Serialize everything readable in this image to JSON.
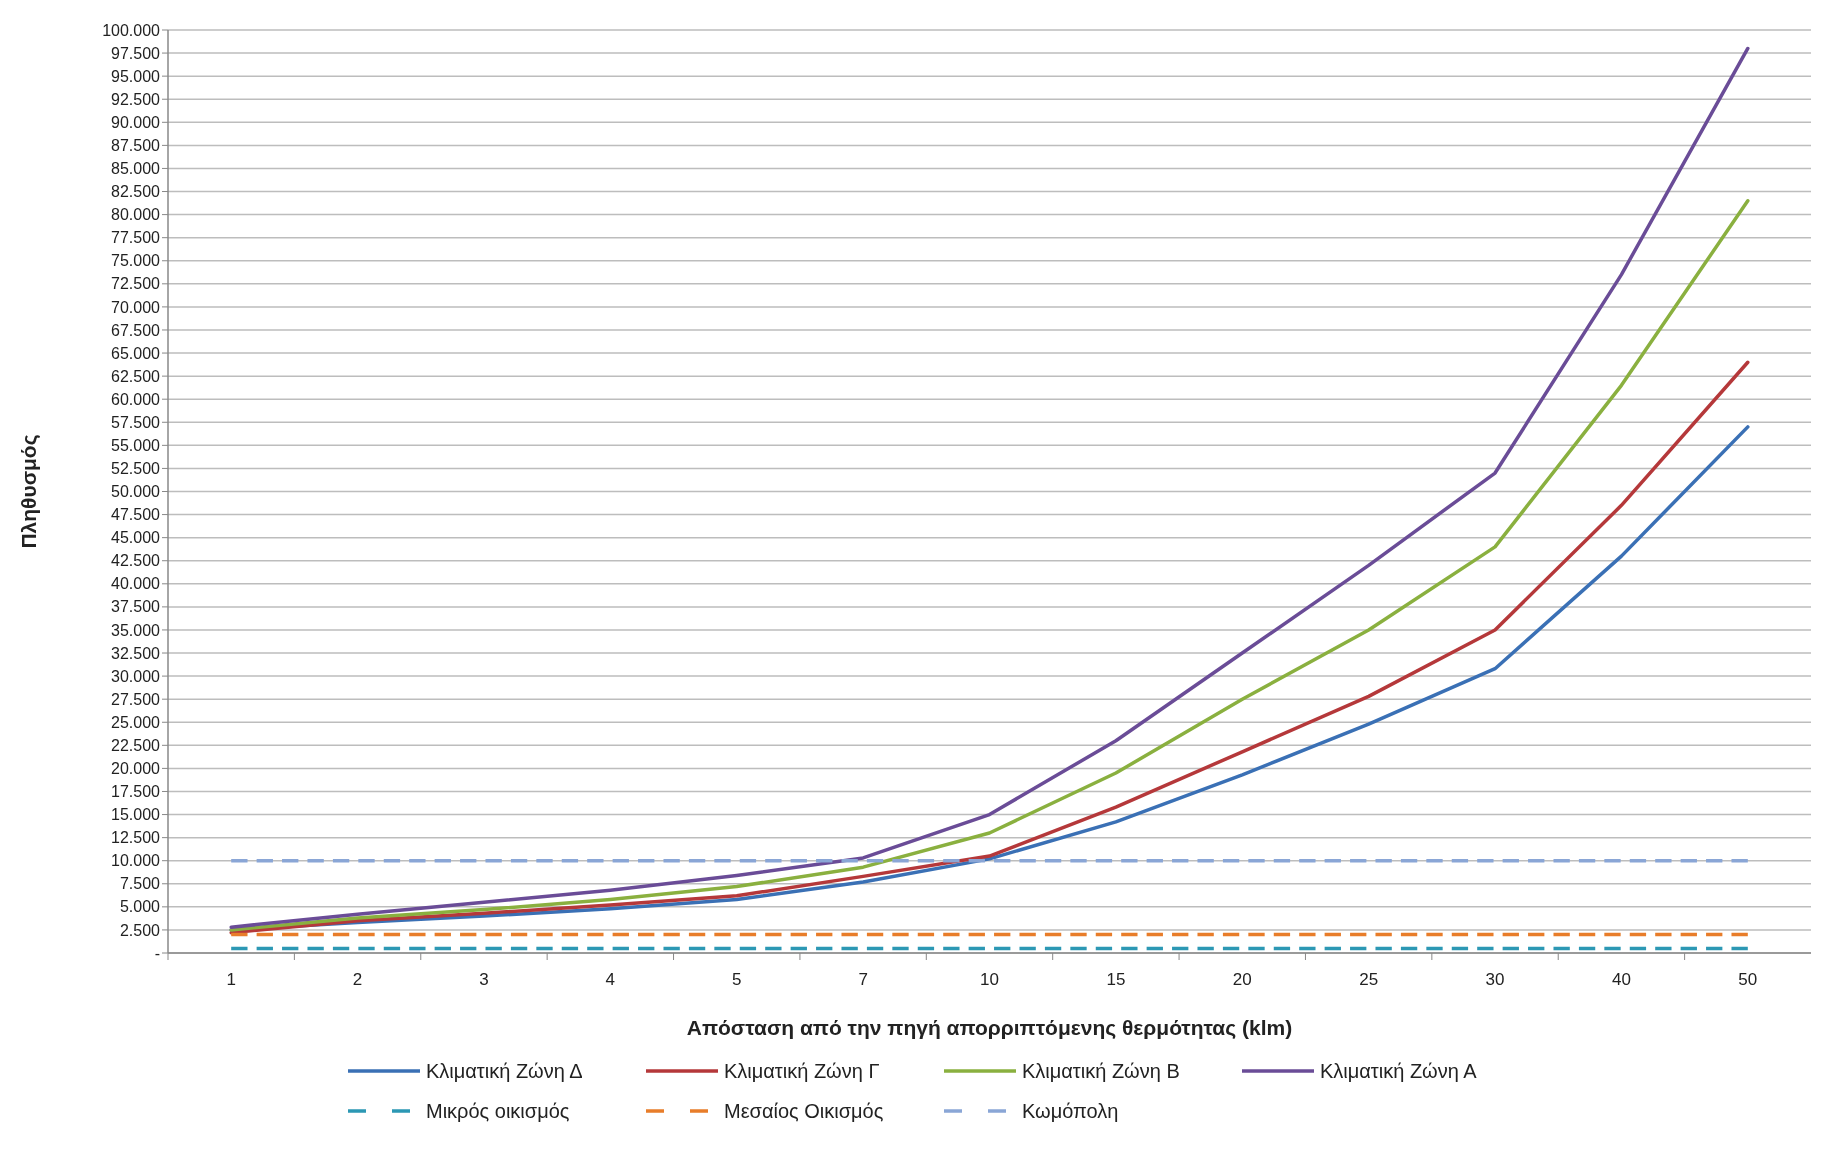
{
  "chart_data": {
    "type": "line",
    "xlabel": "Απόσταση από την πηγή απορριπτόμενης θερμότητας (klm)",
    "ylabel": "Πληθυσμός",
    "categories": [
      "1",
      "2",
      "3",
      "4",
      "5",
      "7",
      "10",
      "15",
      "20",
      "25",
      "30",
      "40",
      "50"
    ],
    "series": [
      {
        "name": "Κλιματική Ζώνη Δ",
        "color": "#3a70b5",
        "values": [
          2500,
          3300,
          4000,
          4800,
          5800,
          7700,
          10200,
          14200,
          19300,
          24800,
          30800,
          43000,
          57000
        ]
      },
      {
        "name": "Κλιματική Ζώνη Γ",
        "color": "#b5383a",
        "values": [
          2200,
          3500,
          4300,
          5200,
          6200,
          8300,
          10500,
          15800,
          21800,
          27800,
          35000,
          48500,
          64000
        ]
      },
      {
        "name": "Κλιματική Ζώνη Β",
        "color": "#8ab03f",
        "values": [
          2500,
          3800,
          4700,
          5800,
          7200,
          9300,
          13000,
          19500,
          27500,
          35000,
          44000,
          61500,
          81500
        ]
      },
      {
        "name": "Κλιματική Ζώνη Α",
        "color": "#6a4c97",
        "values": [
          2800,
          4200,
          5500,
          6800,
          8400,
          10300,
          15000,
          23000,
          32500,
          42000,
          52000,
          73500,
          98000
        ]
      },
      {
        "name": "Μικρός οικισμός",
        "color": "#2c98b4",
        "line_style": "dashed",
        "values": [
          500,
          500,
          500,
          500,
          500,
          500,
          500,
          500,
          500,
          500,
          500,
          500,
          500
        ]
      },
      {
        "name": "Μεσαίος Οικισμός",
        "color": "#e87d2a",
        "line_style": "dashed",
        "values": [
          2000,
          2000,
          2000,
          2000,
          2000,
          2000,
          2000,
          2000,
          2000,
          2000,
          2000,
          2000,
          2000
        ]
      },
      {
        "name": "Κωμόπολη",
        "color": "#8aa6d6",
        "line_style": "dashed",
        "values": [
          10000,
          10000,
          10000,
          10000,
          10000,
          10000,
          10000,
          10000,
          10000,
          10000,
          10000,
          10000,
          10000
        ]
      }
    ],
    "ylim": [
      0,
      100000
    ],
    "yticks": [
      {
        "value": 0,
        "label": "-"
      },
      {
        "value": 2500,
        "label": "2.500"
      },
      {
        "value": 5000,
        "label": "5.000"
      },
      {
        "value": 7500,
        "label": "7.500"
      },
      {
        "value": 10000,
        "label": "10.000"
      },
      {
        "value": 12500,
        "label": "12.500"
      },
      {
        "value": 15000,
        "label": "15.000"
      },
      {
        "value": 17500,
        "label": "17.500"
      },
      {
        "value": 20000,
        "label": "20.000"
      },
      {
        "value": 22500,
        "label": "22.500"
      },
      {
        "value": 25000,
        "label": "25.000"
      },
      {
        "value": 27500,
        "label": "27.500"
      },
      {
        "value": 30000,
        "label": "30.000"
      },
      {
        "value": 32500,
        "label": "32.500"
      },
      {
        "value": 35000,
        "label": "35.000"
      },
      {
        "value": 37500,
        "label": "37.500"
      },
      {
        "value": 40000,
        "label": "40.000"
      },
      {
        "value": 42500,
        "label": "42.500"
      },
      {
        "value": 45000,
        "label": "45.000"
      },
      {
        "value": 47500,
        "label": "47.500"
      },
      {
        "value": 50000,
        "label": "50.000"
      },
      {
        "value": 52500,
        "label": "52.500"
      },
      {
        "value": 55000,
        "label": "55.000"
      },
      {
        "value": 57500,
        "label": "57.500"
      },
      {
        "value": 60000,
        "label": "60.000"
      },
      {
        "value": 62500,
        "label": "62.500"
      },
      {
        "value": 65000,
        "label": "65.000"
      },
      {
        "value": 67500,
        "label": "67.500"
      },
      {
        "value": 70000,
        "label": "70.000"
      },
      {
        "value": 72500,
        "label": "72.500"
      },
      {
        "value": 75000,
        "label": "75.000"
      },
      {
        "value": 77500,
        "label": "77.500"
      },
      {
        "value": 80000,
        "label": "80.000"
      },
      {
        "value": 82500,
        "label": "82.500"
      },
      {
        "value": 85000,
        "label": "85.000"
      },
      {
        "value": 87500,
        "label": "87.500"
      },
      {
        "value": 90000,
        "label": "90.000"
      },
      {
        "value": 92500,
        "label": "92.500"
      },
      {
        "value": 95000,
        "label": "95.000"
      },
      {
        "value": 97500,
        "label": "97.500"
      },
      {
        "value": 100000,
        "label": "100.000"
      }
    ],
    "grid": "y",
    "legend": "bottom",
    "marker": "none",
    "line_style": "solid"
  }
}
